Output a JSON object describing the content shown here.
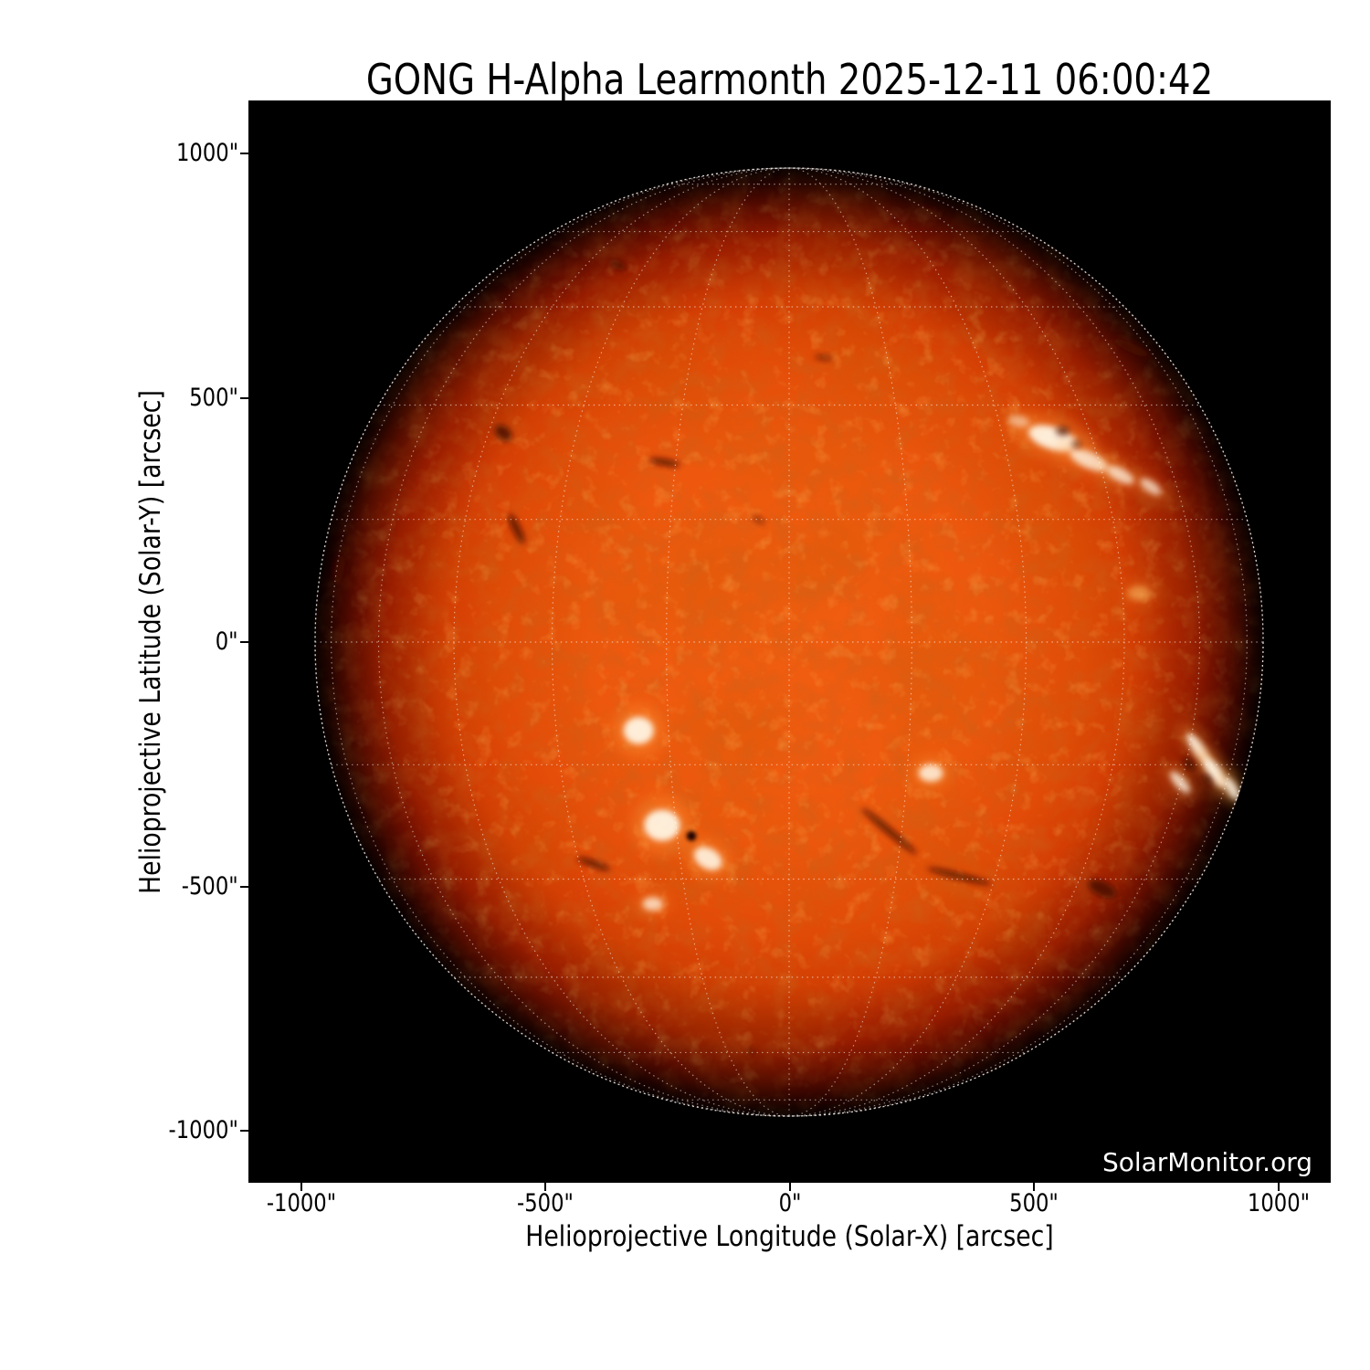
{
  "title": "GONG H-Alpha Learmonth 2025-12-11 06:00:42",
  "watermark": "SolarMonitor.org",
  "axes": {
    "x_label": "Helioprojective Longitude (Solar-X) [arcsec]",
    "y_label": "Helioprojective Latitude (Solar-Y) [arcsec]",
    "x_ticks": [
      {
        "label": "-1000\"",
        "value": -1000
      },
      {
        "label": "-500\"",
        "value": -500
      },
      {
        "label": "0\"",
        "value": 0
      },
      {
        "label": "500\"",
        "value": 500
      },
      {
        "label": "1000\"",
        "value": 1000
      }
    ],
    "y_ticks": [
      {
        "label": "1000\"",
        "value": 1000
      },
      {
        "label": "500\"",
        "value": 500
      },
      {
        "label": "0\"",
        "value": 0
      },
      {
        "label": "-500\"",
        "value": -500
      },
      {
        "label": "-1000\"",
        "value": -1000
      }
    ]
  },
  "chart_data": {
    "type": "heatmap",
    "title": "GONG H-Alpha Learmonth 2025-12-11 06:00:42",
    "xlabel": "Helioprojective Longitude (Solar-X) [arcsec]",
    "ylabel": "Helioprojective Latitude (Solar-Y) [arcsec]",
    "units": "arcsec",
    "xlim": [
      -1107,
      1107
    ],
    "ylim": [
      -1107,
      1107
    ],
    "background_color": "#000000",
    "solar_disk": {
      "center_x": 0,
      "center_y": 0,
      "radius_arcsec": 970,
      "core_color": "#f15e11",
      "mid_color": "#d23a03",
      "limb_color": "#6d0d00"
    },
    "heliographic_grid": {
      "spacing_deg": 15,
      "color": "#ffffff",
      "style": "dotted"
    },
    "features": {
      "plages": [
        {
          "x": 540,
          "y": 417,
          "w": 105,
          "h": 46,
          "rot": 18,
          "o": 0.95
        },
        {
          "x": 614,
          "y": 372,
          "w": 85,
          "h": 33,
          "rot": 24,
          "o": 0.8
        },
        {
          "x": 678,
          "y": 342,
          "w": 62,
          "h": 27,
          "rot": 28,
          "o": 0.75
        },
        {
          "x": 740,
          "y": 318,
          "w": 50,
          "h": 23,
          "rot": 35,
          "o": 0.7
        },
        {
          "x": 470,
          "y": 452,
          "w": 44,
          "h": 24,
          "rot": 10,
          "o": 0.5
        },
        {
          "x": 716,
          "y": 100,
          "w": 46,
          "h": 30,
          "rot": 0,
          "o": 0.5,
          "color": "#ffbe66"
        },
        {
          "x": -308,
          "y": -181,
          "w": 62,
          "h": 56,
          "rot": 0,
          "o": 0.95
        },
        {
          "x": -260,
          "y": -375,
          "w": 74,
          "h": 64,
          "rot": 0,
          "o": 0.95
        },
        {
          "x": -166,
          "y": -443,
          "w": 62,
          "h": 42,
          "rot": 30,
          "o": 0.9
        },
        {
          "x": -279,
          "y": -536,
          "w": 42,
          "h": 28,
          "rot": 0,
          "o": 0.75
        },
        {
          "x": 290,
          "y": -268,
          "w": 50,
          "h": 36,
          "rot": 0,
          "o": 0.85
        },
        {
          "x": 838,
          "y": -219,
          "w": 78,
          "h": 24,
          "rot": 55,
          "o": 0.9
        },
        {
          "x": 872,
          "y": -268,
          "w": 72,
          "h": 28,
          "rot": 55,
          "o": 0.95
        },
        {
          "x": 800,
          "y": -287,
          "w": 56,
          "h": 22,
          "rot": 48,
          "o": 0.8
        },
        {
          "x": 906,
          "y": -300,
          "w": 52,
          "h": 22,
          "rot": 60,
          "o": 0.85
        }
      ],
      "filaments": [
        {
          "x": -585,
          "y": 428,
          "w": 40,
          "h": 27,
          "rot": 40,
          "o": 0.85
        },
        {
          "x": -558,
          "y": 232,
          "w": 68,
          "h": 17,
          "rot": 64,
          "o": 0.8
        },
        {
          "x": -255,
          "y": 368,
          "w": 64,
          "h": 14,
          "rot": 10,
          "o": 0.8
        },
        {
          "x": 700,
          "y": 602,
          "w": 82,
          "h": 17,
          "rot": 25,
          "o": 0.9
        },
        {
          "x": 205,
          "y": -387,
          "w": 148,
          "h": 14,
          "rot": 40,
          "o": 0.8
        },
        {
          "x": 348,
          "y": -479,
          "w": 136,
          "h": 13,
          "rot": 14,
          "o": 0.8
        },
        {
          "x": -400,
          "y": -454,
          "w": 72,
          "h": 14,
          "rot": 20,
          "o": 0.8
        },
        {
          "x": 641,
          "y": -505,
          "w": 62,
          "h": 30,
          "rot": 25,
          "o": 0.85
        },
        {
          "x": 560,
          "y": 432,
          "w": 28,
          "h": 19,
          "rot": 0,
          "o": 0.7
        },
        {
          "x": 588,
          "y": 405,
          "w": 21,
          "h": 15,
          "rot": 0,
          "o": 0.6
        },
        {
          "x": 820,
          "y": -250,
          "w": 32,
          "h": 17,
          "rot": 55,
          "o": 0.85
        },
        {
          "x": 856,
          "y": -282,
          "w": 27,
          "h": 15,
          "rot": 55,
          "o": 0.8
        },
        {
          "x": 70,
          "y": 582,
          "w": 36,
          "h": 11,
          "rot": 8,
          "o": 0.6
        },
        {
          "x": -62,
          "y": 250,
          "w": 30,
          "h": 11,
          "rot": 30,
          "o": 0.5
        },
        {
          "x": -350,
          "y": 772,
          "w": 36,
          "h": 17,
          "rot": 25,
          "o": 0.7
        },
        {
          "x": -78,
          "y": -838,
          "w": 18,
          "h": 13,
          "rot": 0,
          "o": 0.5
        },
        {
          "x": -920,
          "y": 150,
          "w": 20,
          "h": 58,
          "rot": 10,
          "o": 0.8
        },
        {
          "x": 288,
          "y": 880,
          "w": 42,
          "h": 13,
          "rot": 20,
          "o": 0.6
        }
      ],
      "sunspots": [
        {
          "x": -200,
          "y": -397,
          "r": 10
        }
      ]
    }
  },
  "colors": {
    "page_bg": "#ffffff",
    "text": "#000000",
    "watermark": "#ffffff",
    "plage": "#fff4e2",
    "plage_glow": "#ff9e3c",
    "filament": "#480b00",
    "sunspot": "#140200"
  }
}
